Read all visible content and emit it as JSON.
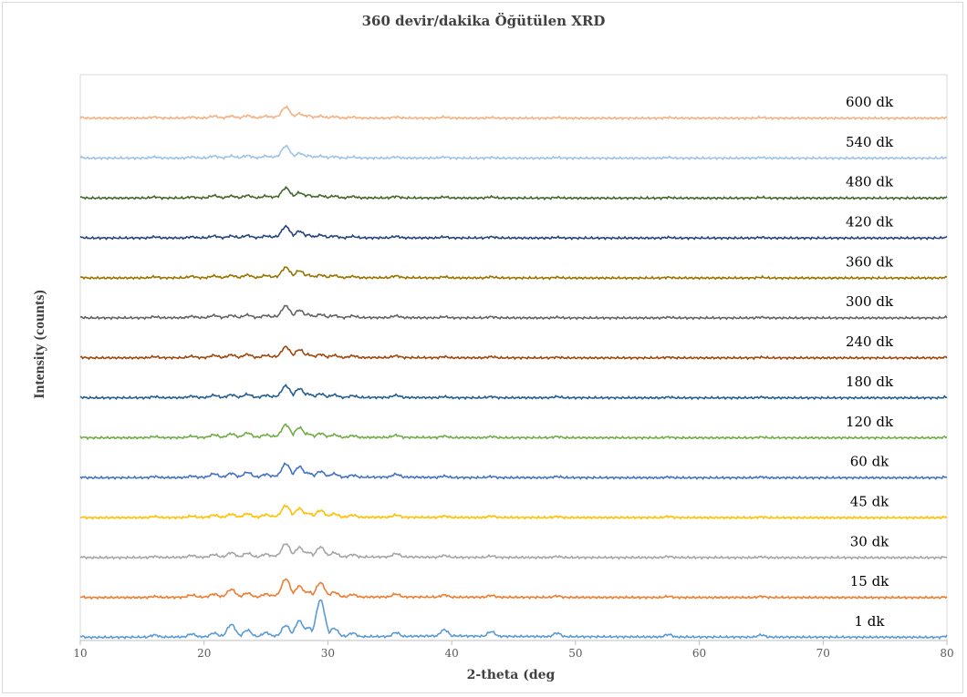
{
  "chart_data": {
    "type": "line",
    "title": "360 devir/dakika Öğütülen XRD",
    "xlabel": "2-theta (deg",
    "ylabel": "Intensity (counts)",
    "xlim": [
      10,
      80
    ],
    "xticks": [
      "10",
      "20",
      "30",
      "40",
      "50",
      "60",
      "70",
      "80"
    ],
    "legend": "inline-right",
    "grid": false,
    "x": [
      10,
      16,
      19,
      20.8,
      22.2,
      23.5,
      25,
      26.6,
      27.7,
      28.4,
      29.4,
      30.5,
      32,
      35.5,
      39.4,
      43.2,
      48.5,
      57.5,
      65,
      80
    ],
    "series": [
      {
        "name": "1 dk",
        "color": "#5b9bd5",
        "values": [
          0.3,
          0.6,
          0.8,
          1.0,
          2.8,
          1.6,
          1.1,
          2.6,
          3.6,
          2.2,
          8.0,
          2.0,
          1.0,
          1.1,
          1.7,
          1.3,
          1.0,
          0.7,
          0.6,
          0.4
        ]
      },
      {
        "name": "15 dk",
        "color": "#ed7d31",
        "values": [
          0.2,
          0.3,
          0.6,
          0.8,
          1.8,
          1.0,
          0.8,
          4.0,
          2.5,
          1.3,
          3.2,
          1.2,
          0.7,
          0.8,
          0.6,
          0.5,
          0.4,
          0.3,
          0.3,
          0.2
        ]
      },
      {
        "name": "30 dk",
        "color": "#a5a5a5",
        "values": [
          0.2,
          0.3,
          0.5,
          0.7,
          1.1,
          1.0,
          0.8,
          3.0,
          2.2,
          1.2,
          2.3,
          1.1,
          0.7,
          0.9,
          0.5,
          0.4,
          0.3,
          0.3,
          0.2,
          0.2
        ]
      },
      {
        "name": "45 dk",
        "color": "#ffc000",
        "values": [
          0.2,
          0.3,
          0.4,
          0.6,
          0.8,
          0.9,
          0.7,
          2.6,
          2.0,
          1.0,
          1.6,
          0.9,
          0.6,
          0.6,
          0.4,
          0.4,
          0.3,
          0.3,
          0.2,
          0.2
        ]
      },
      {
        "name": "60 dk",
        "color": "#4472c4",
        "values": [
          0.2,
          0.3,
          0.4,
          0.9,
          1.0,
          1.2,
          0.8,
          3.0,
          2.4,
          1.1,
          1.4,
          0.9,
          0.6,
          0.8,
          0.4,
          0.3,
          0.3,
          0.2,
          0.2,
          0.2
        ]
      },
      {
        "name": "120 dk",
        "color": "#70ad47",
        "values": [
          0.2,
          0.3,
          0.4,
          0.7,
          0.9,
          1.1,
          0.7,
          2.8,
          2.2,
          0.9,
          1.0,
          0.7,
          0.5,
          0.6,
          0.4,
          0.3,
          0.3,
          0.2,
          0.2,
          0.2
        ]
      },
      {
        "name": "180 dk",
        "color": "#255e91",
        "values": [
          0.2,
          0.3,
          0.4,
          0.6,
          0.7,
          0.8,
          0.6,
          2.6,
          2.0,
          0.9,
          0.9,
          0.7,
          0.5,
          0.6,
          0.3,
          0.3,
          0.3,
          0.2,
          0.2,
          0.2
        ]
      },
      {
        "name": "240 dk",
        "color": "#9e480e",
        "values": [
          0.2,
          0.3,
          0.4,
          0.6,
          0.7,
          0.8,
          0.6,
          2.4,
          1.8,
          0.8,
          0.8,
          0.6,
          0.5,
          0.5,
          0.3,
          0.3,
          0.2,
          0.2,
          0.2,
          0.2
        ]
      },
      {
        "name": "300 dk",
        "color": "#636363",
        "values": [
          0.2,
          0.3,
          0.4,
          0.6,
          0.6,
          0.7,
          0.6,
          2.6,
          1.7,
          0.8,
          0.8,
          0.6,
          0.5,
          0.5,
          0.3,
          0.3,
          0.2,
          0.2,
          0.2,
          0.2
        ]
      },
      {
        "name": "360 dk",
        "color": "#997300",
        "values": [
          0.2,
          0.3,
          0.4,
          0.5,
          0.6,
          0.7,
          0.6,
          2.3,
          1.6,
          0.7,
          0.7,
          0.6,
          0.4,
          0.5,
          0.3,
          0.3,
          0.2,
          0.2,
          0.2,
          0.2
        ]
      },
      {
        "name": "420 dk",
        "color": "#264478",
        "values": [
          0.2,
          0.3,
          0.3,
          0.5,
          0.5,
          0.6,
          0.5,
          2.5,
          1.5,
          0.7,
          0.7,
          0.5,
          0.4,
          0.4,
          0.3,
          0.3,
          0.2,
          0.2,
          0.2,
          0.2
        ]
      },
      {
        "name": "480 dk",
        "color": "#43682b",
        "values": [
          0.2,
          0.3,
          0.3,
          0.6,
          0.5,
          0.6,
          0.5,
          2.2,
          1.2,
          0.7,
          0.6,
          0.5,
          0.4,
          0.4,
          0.3,
          0.3,
          0.2,
          0.2,
          0.2,
          0.2
        ]
      },
      {
        "name": "540 dk",
        "color": "#9dc3e6",
        "values": [
          0.2,
          0.3,
          0.3,
          0.5,
          0.5,
          0.6,
          0.5,
          2.6,
          1.1,
          0.6,
          0.5,
          0.4,
          0.3,
          0.3,
          0.3,
          0.2,
          0.2,
          0.2,
          0.2,
          0.2
        ]
      },
      {
        "name": "600 dk",
        "color": "#f4b183",
        "values": [
          0.2,
          0.3,
          0.3,
          0.5,
          0.5,
          0.6,
          0.5,
          2.4,
          1.0,
          0.6,
          0.5,
          0.4,
          0.3,
          0.3,
          0.3,
          0.2,
          0.2,
          0.2,
          0.2,
          0.2
        ]
      }
    ]
  }
}
